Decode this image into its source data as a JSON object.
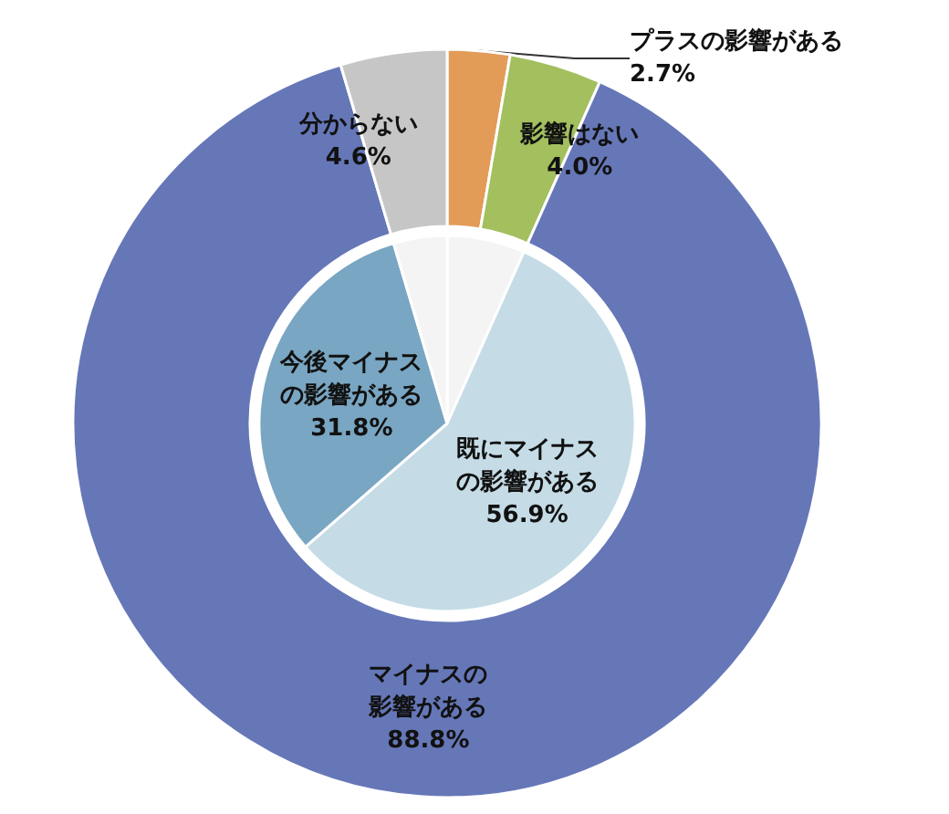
{
  "chart_data": [
    {
      "type": "donut",
      "categories": [
        "プラスの影響がある",
        "影響はない",
        "マイナスの影響がある",
        "分からない"
      ],
      "values": [
        2.7,
        4.0,
        88.8,
        4.6
      ],
      "colors": [
        "#e39b58",
        "#a3bf5e",
        "#6677b8",
        "#c6c6c6"
      ],
      "value_labels": [
        "2.7%",
        "4.0%",
        "88.8%",
        "4.6%"
      ]
    },
    {
      "type": "pie",
      "categories": [
        null,
        "既にマイナスの影響がある",
        "今後マイナスの影響がある",
        null
      ],
      "values": [
        6.7,
        56.9,
        31.8,
        4.6
      ],
      "colors": [
        "#f4f4f4",
        "#c5dce6",
        "#79a6c2",
        "#f4f4f4"
      ],
      "value_labels": [
        null,
        "56.9%",
        "31.8%",
        null
      ]
    }
  ]
}
